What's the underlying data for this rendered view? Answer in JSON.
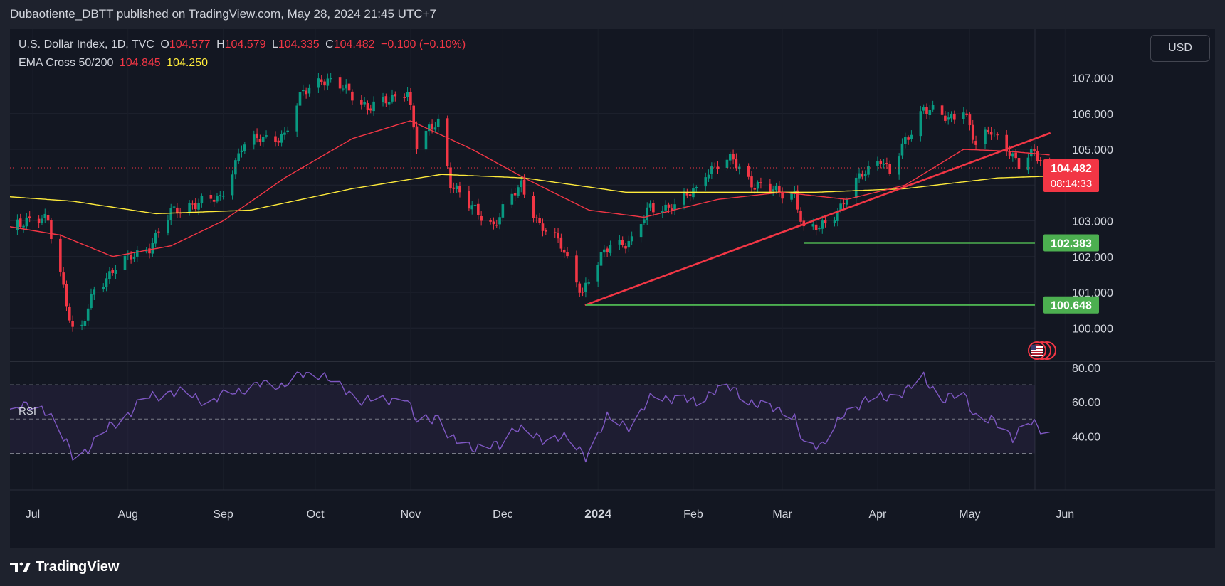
{
  "header": {
    "publisher": "Dubaotiente_DBTT published on TradingView.com, May 28, 2024 21:45 UTC+7"
  },
  "legend": {
    "symbol": "U.S. Dollar Index, 1D, TVC",
    "open_label": "O",
    "open": "104.577",
    "high_label": "H",
    "high": "104.579",
    "low_label": "L",
    "low": "104.335",
    "close_label": "C",
    "close": "104.482",
    "change": "−0.100 (−0.10%)",
    "indicator": "EMA Cross 50/200",
    "ema50": "104.845",
    "ema200": "104.250"
  },
  "currency_button": "USD",
  "rsi_label": "RSI",
  "footer": {
    "brand": "TradingView"
  },
  "colors": {
    "up": "#089981",
    "down": "#f23645",
    "ema50": "#f23645",
    "ema200": "#ffeb3b",
    "rsi": "#7e57c2",
    "support": "#4caf50"
  },
  "chart_data": [
    {
      "type": "candlestick",
      "title": "U.S. Dollar Index, 1D, TVC",
      "x_ticks": [
        "Jul",
        "Aug",
        "Sep",
        "Oct",
        "Nov",
        "Dec",
        "2024",
        "Feb",
        "Mar",
        "Apr",
        "May",
        "Jun"
      ],
      "y_ticks": [
        "107.000",
        "106.000",
        "105.000",
        "103.000",
        "102.000",
        "101.000",
        "100.000"
      ],
      "ylim": [
        99,
        107.7
      ],
      "last_price": {
        "value": 104.482,
        "label": "104.482",
        "countdown": "08:14:33"
      },
      "price_labels": [
        {
          "value": 102.383,
          "label": "102.383"
        },
        {
          "value": 100.648,
          "label": "100.648"
        }
      ],
      "support_lines": [
        {
          "from": "2024-03-08",
          "value": 102.383
        },
        {
          "from": "2023-12-28",
          "value": 100.648
        }
      ],
      "trendline": {
        "from": {
          "date": "2023-12-28",
          "value": 100.648
        },
        "to": {
          "date": "2024-05-27",
          "value": 105.45
        }
      },
      "close_anchors": [
        [
          "2023-06-19",
          102.4
        ],
        [
          "2023-06-26",
          103.0
        ],
        [
          "2023-07-06",
          103.0
        ],
        [
          "2023-07-10",
          101.6
        ],
        [
          "2023-07-14",
          99.9
        ],
        [
          "2023-07-17",
          99.95
        ],
        [
          "2023-07-21",
          101.1
        ],
        [
          "2023-07-28",
          101.7
        ],
        [
          "2023-08-08",
          102.3
        ],
        [
          "2023-08-15",
          103.2
        ],
        [
          "2023-08-22",
          103.5
        ],
        [
          "2023-08-31",
          103.6
        ],
        [
          "2023-09-07",
          105.1
        ],
        [
          "2023-09-14",
          105.3
        ],
        [
          "2023-09-21",
          105.4
        ],
        [
          "2023-09-27",
          106.6
        ],
        [
          "2023-10-03",
          107.0
        ],
        [
          "2023-10-12",
          106.6
        ],
        [
          "2023-10-18",
          106.2
        ],
        [
          "2023-10-24",
          106.3
        ],
        [
          "2023-10-31",
          106.7
        ],
        [
          "2023-11-03",
          105.1
        ],
        [
          "2023-11-10",
          105.8
        ],
        [
          "2023-11-14",
          104.1
        ],
        [
          "2023-11-20",
          103.4
        ],
        [
          "2023-11-28",
          102.9
        ],
        [
          "2023-12-01",
          103.3
        ],
        [
          "2023-12-07",
          104.0
        ],
        [
          "2023-12-13",
          102.9
        ],
        [
          "2023-12-20",
          102.3
        ],
        [
          "2023-12-27",
          101.0
        ],
        [
          "2024-01-05",
          102.4
        ],
        [
          "2024-01-12",
          102.4
        ],
        [
          "2024-01-18",
          103.4
        ],
        [
          "2024-01-26",
          103.4
        ],
        [
          "2024-02-02",
          103.9
        ],
        [
          "2024-02-05",
          104.4
        ],
        [
          "2024-02-14",
          104.7
        ],
        [
          "2024-02-21",
          104.0
        ],
        [
          "2024-02-28",
          103.8
        ],
        [
          "2024-03-05",
          103.8
        ],
        [
          "2024-03-08",
          102.7
        ],
        [
          "2024-03-13",
          102.8
        ],
        [
          "2024-03-20",
          103.4
        ],
        [
          "2024-03-27",
          104.3
        ],
        [
          "2024-04-02",
          104.8
        ],
        [
          "2024-04-05",
          104.3
        ],
        [
          "2024-04-10",
          105.2
        ],
        [
          "2024-04-16",
          106.2
        ],
        [
          "2024-04-24",
          105.8
        ],
        [
          "2024-04-29",
          106.2
        ],
        [
          "2024-05-03",
          105.1
        ],
        [
          "2024-05-08",
          105.5
        ],
        [
          "2024-05-14",
          105.0
        ],
        [
          "2024-05-17",
          104.5
        ],
        [
          "2024-05-22",
          104.9
        ],
        [
          "2024-05-27",
          104.48
        ]
      ],
      "ema50_anchors": [
        [
          "2023-06-19",
          102.9
        ],
        [
          "2023-07-10",
          102.6
        ],
        [
          "2023-07-27",
          102.0
        ],
        [
          "2023-08-15",
          102.3
        ],
        [
          "2023-09-01",
          103.0
        ],
        [
          "2023-09-21",
          104.2
        ],
        [
          "2023-10-13",
          105.3
        ],
        [
          "2023-11-01",
          105.8
        ],
        [
          "2023-11-21",
          105.0
        ],
        [
          "2023-12-08",
          104.2
        ],
        [
          "2023-12-29",
          103.3
        ],
        [
          "2024-01-16",
          103.1
        ],
        [
          "2024-02-09",
          103.6
        ],
        [
          "2024-03-01",
          103.8
        ],
        [
          "2024-03-22",
          103.6
        ],
        [
          "2024-04-10",
          104.0
        ],
        [
          "2024-04-29",
          105.0
        ],
        [
          "2024-05-13",
          104.95
        ],
        [
          "2024-05-27",
          104.845
        ]
      ],
      "ema200_anchors": [
        [
          "2023-06-19",
          103.7
        ],
        [
          "2023-07-14",
          103.55
        ],
        [
          "2023-08-10",
          103.2
        ],
        [
          "2023-09-10",
          103.3
        ],
        [
          "2023-10-13",
          103.9
        ],
        [
          "2023-11-11",
          104.3
        ],
        [
          "2023-12-08",
          104.2
        ],
        [
          "2024-01-10",
          103.8
        ],
        [
          "2024-02-09",
          103.8
        ],
        [
          "2024-03-12",
          103.8
        ],
        [
          "2024-04-10",
          103.9
        ],
        [
          "2024-05-10",
          104.2
        ],
        [
          "2024-05-27",
          104.25
        ]
      ]
    },
    {
      "type": "line",
      "title": "RSI",
      "y_ticks": [
        "80.00",
        "60.00",
        "40.00"
      ],
      "ylim": [
        24,
        82
      ],
      "bands": [
        70,
        50,
        30
      ],
      "anchors": [
        [
          "2023-06-19",
          50
        ],
        [
          "2023-06-26",
          58
        ],
        [
          "2023-07-06",
          55
        ],
        [
          "2023-07-10",
          42
        ],
        [
          "2023-07-14",
          28
        ],
        [
          "2023-07-17",
          30
        ],
        [
          "2023-07-24",
          42
        ],
        [
          "2023-07-31",
          52
        ],
        [
          "2023-08-07",
          62
        ],
        [
          "2023-08-14",
          66
        ],
        [
          "2023-08-21",
          64
        ],
        [
          "2023-08-28",
          60
        ],
        [
          "2023-09-04",
          66
        ],
        [
          "2023-09-13",
          70
        ],
        [
          "2023-09-20",
          70
        ],
        [
          "2023-09-26",
          75
        ],
        [
          "2023-10-03",
          77
        ],
        [
          "2023-10-09",
          68
        ],
        [
          "2023-10-16",
          62
        ],
        [
          "2023-10-23",
          60
        ],
        [
          "2023-10-30",
          64
        ],
        [
          "2023-11-03",
          48
        ],
        [
          "2023-11-10",
          52
        ],
        [
          "2023-11-14",
          38
        ],
        [
          "2023-11-21",
          34
        ],
        [
          "2023-11-30",
          34
        ],
        [
          "2023-12-05",
          46
        ],
        [
          "2023-12-13",
          38
        ],
        [
          "2023-12-20",
          40
        ],
        [
          "2023-12-28",
          29
        ],
        [
          "2024-01-04",
          50
        ],
        [
          "2024-01-12",
          46
        ],
        [
          "2024-01-19",
          64
        ],
        [
          "2024-01-26",
          62
        ],
        [
          "2024-02-02",
          60
        ],
        [
          "2024-02-07",
          66
        ],
        [
          "2024-02-14",
          68
        ],
        [
          "2024-02-21",
          58
        ],
        [
          "2024-03-01",
          56
        ],
        [
          "2024-03-05",
          50
        ],
        [
          "2024-03-08",
          34
        ],
        [
          "2024-03-14",
          36
        ],
        [
          "2024-03-21",
          52
        ],
        [
          "2024-03-28",
          62
        ],
        [
          "2024-04-04",
          62
        ],
        [
          "2024-04-11",
          68
        ],
        [
          "2024-04-16",
          74
        ],
        [
          "2024-04-22",
          62
        ],
        [
          "2024-04-29",
          64
        ],
        [
          "2024-05-03",
          52
        ],
        [
          "2024-05-09",
          48
        ],
        [
          "2024-05-15",
          40
        ],
        [
          "2024-05-20",
          48
        ],
        [
          "2024-05-24",
          44
        ],
        [
          "2024-05-27",
          42
        ]
      ]
    }
  ]
}
